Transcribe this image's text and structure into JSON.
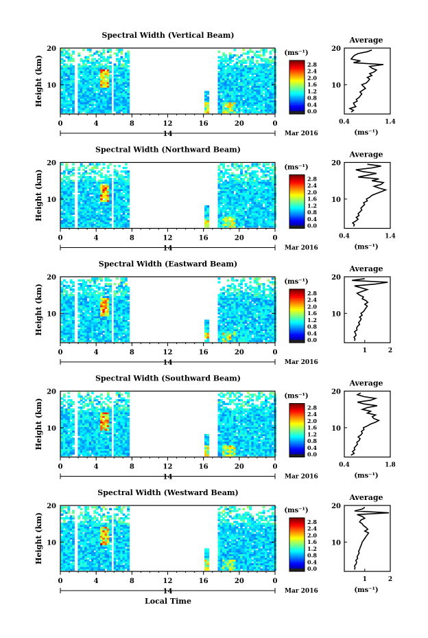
{
  "chart_data": [
    {
      "type": "heatmap",
      "title": "Spectral Width (Vertical Beam)",
      "ylabel": "Height (km)",
      "ylim": [
        2,
        20
      ],
      "yticks": [
        "10",
        "20"
      ],
      "xticks": [
        "0",
        "4",
        "8",
        "12",
        "16",
        "20",
        "0"
      ],
      "date_day": "14",
      "date_month": "Mar 2016",
      "colorbar": {
        "unit": "(ms⁻¹)",
        "ticks": [
          "2.8",
          "2.4",
          "2.0",
          "1.6",
          "1.2",
          "0.8",
          "0.4",
          "0.0"
        ]
      },
      "average": {
        "title": "Average",
        "xlabel": "(ms⁻¹)",
        "xticks": [
          "0.4",
          "1.4"
        ],
        "xlim": [
          0.4,
          1.4
        ],
        "yticks": [
          "10",
          "20"
        ],
        "height_km": [
          2.5,
          3,
          3.5,
          4,
          4.5,
          5,
          5.5,
          6,
          6.5,
          7,
          7.5,
          8,
          8.5,
          9,
          9.5,
          10,
          10.5,
          11,
          11.5,
          12,
          12.5,
          13,
          13.5,
          14,
          14.5,
          15,
          15.5,
          16,
          16.5,
          17,
          17.5,
          18,
          18.5,
          19,
          19.5
        ],
        "values": [
          0.55,
          0.6,
          0.52,
          0.65,
          0.62,
          0.6,
          0.68,
          0.66,
          0.72,
          0.75,
          0.78,
          0.74,
          0.8,
          0.86,
          0.82,
          0.78,
          0.88,
          0.92,
          0.95,
          0.9,
          1.0,
          0.95,
          1.05,
          1.1,
          1.0,
          0.95,
          1.25,
          0.6,
          0.75,
          0.55,
          0.58,
          0.62,
          0.7,
          0.9,
          1.0
        ]
      }
    },
    {
      "type": "heatmap",
      "title": "Spectral Width (Northward Beam)",
      "ylabel": "Height (km)",
      "ylim": [
        2,
        20
      ],
      "yticks": [
        "10",
        "20"
      ],
      "xticks": [
        "0",
        "4",
        "8",
        "12",
        "16",
        "20",
        "0"
      ],
      "date_day": "14",
      "date_month": "Mar 2016",
      "colorbar": {
        "unit": "(ms⁻¹)",
        "ticks": [
          "2.8",
          "2.4",
          "2.0",
          "1.6",
          "1.2",
          "0.8",
          "0.4",
          "0.0"
        ]
      },
      "average": {
        "title": "Average",
        "xlabel": "(ms⁻¹)",
        "xticks": [
          "0.4",
          "1.4"
        ],
        "xlim": [
          0.4,
          1.4
        ],
        "yticks": [
          "10",
          "20"
        ],
        "height_km": [
          2.5,
          3,
          3.5,
          4,
          4.5,
          5,
          5.5,
          6,
          6.5,
          7,
          7.5,
          8,
          8.5,
          9,
          9.5,
          10,
          10.5,
          11,
          11.5,
          12,
          12.5,
          13,
          13.5,
          14,
          14.5,
          15,
          15.5,
          16,
          16.5,
          17,
          17.5,
          18,
          18.5,
          19,
          19.5
        ],
        "values": [
          0.6,
          0.62,
          0.58,
          0.65,
          0.7,
          0.66,
          0.72,
          0.7,
          0.74,
          0.78,
          0.76,
          0.8,
          0.84,
          0.82,
          0.9,
          0.88,
          0.95,
          1.0,
          1.1,
          1.2,
          1.3,
          1.15,
          1.05,
          1.2,
          1.25,
          1.0,
          1.15,
          0.7,
          0.9,
          1.1,
          0.8,
          0.65,
          1.0,
          1.2,
          0.9
        ]
      }
    },
    {
      "type": "heatmap",
      "title": "Spectral Width (Eastward Beam)",
      "ylabel": "Height (km)",
      "ylim": [
        2,
        20
      ],
      "yticks": [
        "10",
        "20"
      ],
      "xticks": [
        "0",
        "4",
        "8",
        "12",
        "16",
        "20",
        "0"
      ],
      "date_day": "14",
      "date_month": "Mar 2016",
      "colorbar": {
        "unit": "(ms⁻¹)",
        "ticks": [
          "2.8",
          "2.4",
          "2.0",
          "1.6",
          "1.2",
          "0.8",
          "0.4",
          "0.0"
        ]
      },
      "average": {
        "title": "Average",
        "xlabel": "",
        "xticks": [
          "1",
          "2"
        ],
        "xlim": [
          0.2,
          2
        ],
        "yticks": [
          "10",
          "20"
        ],
        "height_km": [
          2.5,
          3,
          3.5,
          4,
          4.5,
          5,
          5.5,
          6,
          6.5,
          7,
          7.5,
          8,
          8.5,
          9,
          9.5,
          10,
          10.5,
          11,
          11.5,
          12,
          12.5,
          13,
          13.5,
          14,
          14.5,
          15,
          15.5,
          16,
          16.5,
          17,
          17.5,
          18,
          18.5,
          19,
          19.5
        ],
        "values": [
          0.6,
          0.62,
          0.58,
          0.66,
          0.64,
          0.6,
          0.7,
          0.68,
          0.72,
          0.8,
          0.76,
          0.82,
          0.86,
          0.8,
          0.9,
          0.85,
          0.95,
          1.0,
          1.05,
          1.1,
          1.0,
          1.12,
          1.05,
          0.9,
          0.95,
          0.8,
          0.7,
          0.9,
          1.1,
          0.85,
          0.6,
          1.4,
          1.9,
          0.5,
          1.0
        ]
      }
    },
    {
      "type": "heatmap",
      "title": "Spectral Width (Southward Beam)",
      "ylabel": "Height (km)",
      "ylim": [
        2,
        20
      ],
      "yticks": [
        "10",
        "20"
      ],
      "xticks": [
        "0",
        "4",
        "8",
        "12",
        "16",
        "20",
        "0"
      ],
      "date_day": "14",
      "date_month": "Mar 2016",
      "colorbar": {
        "unit": "(ms⁻¹)",
        "ticks": [
          "2.8",
          "2.4",
          "2.0",
          "1.6",
          "1.2",
          "0.8",
          "0.4",
          "0.0"
        ]
      },
      "average": {
        "title": "Average",
        "xlabel": "(ms⁻¹)",
        "xticks": [
          "0.4",
          "1.8"
        ],
        "xlim": [
          0.4,
          1.8
        ],
        "yticks": [
          "10",
          "20"
        ],
        "height_km": [
          2.5,
          3,
          3.5,
          4,
          4.5,
          5,
          5.5,
          6,
          6.5,
          7,
          7.5,
          8,
          8.5,
          9,
          9.5,
          10,
          10.5,
          11,
          11.5,
          12,
          12.5,
          13,
          13.5,
          14,
          14.5,
          15,
          15.5,
          16,
          16.5,
          17,
          17.5,
          18,
          18.5,
          19,
          19.5
        ],
        "values": [
          0.6,
          0.7,
          0.65,
          0.72,
          0.7,
          0.75,
          0.8,
          0.78,
          0.85,
          0.88,
          0.82,
          0.9,
          0.95,
          0.92,
          1.0,
          0.98,
          1.1,
          1.2,
          1.35,
          1.45,
          1.3,
          1.25,
          1.35,
          1.1,
          1.2,
          0.95,
          1.1,
          1.4,
          1.0,
          0.8,
          1.2,
          1.35,
          1.0,
          0.8,
          0.9
        ]
      }
    },
    {
      "type": "heatmap",
      "title": "Spectral Width (Westward Beam)",
      "ylabel": "Height (km)",
      "ylim": [
        2,
        20
      ],
      "yticks": [
        "10",
        "20"
      ],
      "xticks": [
        "0",
        "4",
        "8",
        "12",
        "16",
        "20",
        "0"
      ],
      "date_day": "14",
      "date_month": "Mar 2016",
      "colorbar": {
        "unit": "(ms⁻¹)",
        "ticks": [
          "2.8",
          "2.4",
          "2.0",
          "1.6",
          "1.2",
          "0.8",
          "0.4",
          "0.0"
        ]
      },
      "xlabel": "Local Time",
      "average": {
        "title": "Average",
        "xlabel": "(ms⁻¹)",
        "xticks": [
          "1",
          "2"
        ],
        "xlim": [
          0.2,
          2
        ],
        "yticks": [
          "10",
          "20"
        ],
        "height_km": [
          2.5,
          3,
          3.5,
          4,
          4.5,
          5,
          5.5,
          6,
          6.5,
          7,
          7.5,
          8,
          8.5,
          9,
          9.5,
          10,
          10.5,
          11,
          11.5,
          12,
          12.5,
          13,
          13.5,
          14,
          14.5,
          15,
          15.5,
          16,
          16.5,
          17,
          17.5,
          18,
          18.5,
          19,
          19.5
        ],
        "values": [
          0.6,
          0.62,
          0.6,
          0.66,
          0.68,
          0.65,
          0.72,
          0.7,
          0.74,
          0.78,
          0.76,
          0.8,
          0.82,
          0.85,
          0.88,
          0.9,
          0.95,
          1.0,
          1.05,
          1.1,
          1.15,
          1.0,
          1.12,
          1.05,
          0.95,
          0.9,
          0.8,
          0.85,
          1.0,
          0.9,
          0.7,
          1.95,
          0.6,
          0.9,
          1.0
        ]
      }
    }
  ]
}
